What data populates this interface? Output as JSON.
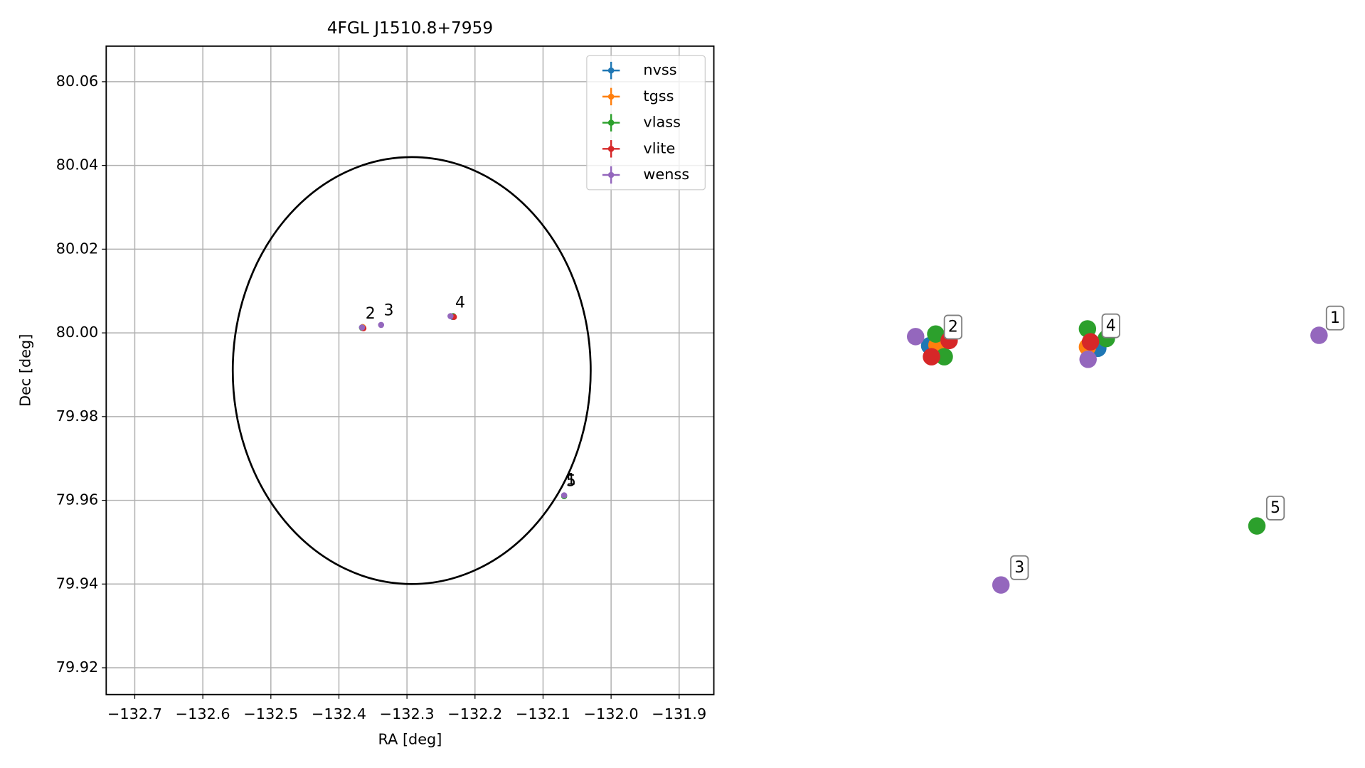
{
  "chart_data": [
    {
      "type": "scatter",
      "title": "4FGL J1510.8+7959",
      "x_label": "RA [deg]",
      "y_label": "Dec [deg]",
      "xlim": [
        -132.742,
        -131.849
      ],
      "ylim": [
        79.9136,
        80.0685
      ],
      "xticks": [
        {
          "value": -132.7,
          "label": "−132.7"
        },
        {
          "value": -132.6,
          "label": "−132.6"
        },
        {
          "value": -132.5,
          "label": "−132.5"
        },
        {
          "value": -132.4,
          "label": "−132.4"
        },
        {
          "value": -132.3,
          "label": "−132.3"
        },
        {
          "value": -132.2,
          "label": "−132.2"
        },
        {
          "value": -132.1,
          "label": "−132.1"
        },
        {
          "value": -132.0,
          "label": "−132.0"
        },
        {
          "value": -131.9,
          "label": "−131.9"
        }
      ],
      "yticks": [
        79.92,
        79.94,
        79.96,
        79.98,
        {
          "value": 80,
          "label": "80.00"
        },
        80.02,
        80.04,
        80.06
      ],
      "grid": true,
      "legend": "upper right",
      "ellipse": {
        "center": [
          -132.293,
          79.991
        ],
        "width": 0.526,
        "height": 0.102
      },
      "series": [
        {
          "name": "nvss",
          "color": "#1f77b4",
          "x": [
            -132.366,
            -132.233
          ],
          "y": [
            80.0013,
            80.0038
          ]
        },
        {
          "name": "tgss",
          "color": "#ff7f0e",
          "x": [
            -132.365,
            -132.232
          ],
          "y": [
            80.0014,
            80.0039
          ]
        },
        {
          "name": "vlass",
          "color": "#2ca02c",
          "x": [
            -132.366,
            -132.232,
            -132.069
          ],
          "y": [
            80.0012,
            80.004,
            79.961
          ]
        },
        {
          "name": "vlite",
          "color": "#d62728",
          "x": [
            -132.364,
            -132.231
          ],
          "y": [
            80.0011,
            80.0038
          ]
        },
        {
          "name": "wenss",
          "color": "#9467bd",
          "x": [
            -132.069,
            -132.366,
            -132.338,
            -132.236
          ],
          "y": [
            79.9612,
            80.0013,
            80.0019,
            80.004
          ]
        }
      ],
      "annotations": [
        {
          "text": "1",
          "x": -132.06,
          "y": 79.9648
        },
        {
          "text": "2",
          "x": -132.355,
          "y": 80.0044
        },
        {
          "text": "3",
          "x": -132.328,
          "y": 80.0052
        },
        {
          "text": "4",
          "x": -132.223,
          "y": 80.0071
        },
        {
          "text": "5",
          "x": -132.06,
          "y": 79.9644
        }
      ]
    },
    {
      "type": "scatter",
      "axes": false,
      "label_box": true,
      "xlim": [
        0,
        10
      ],
      "ylim": [
        0,
        10
      ],
      "series": [
        {
          "name": "nvss",
          "color": "#1f77b4",
          "x": [
            2.97,
            5.73
          ],
          "y": [
            5.38,
            5.34
          ]
        },
        {
          "name": "tgss",
          "color": "#ff7f0e",
          "x": [
            3.09,
            5.56
          ],
          "y": [
            5.39,
            5.36
          ]
        },
        {
          "name": "vlass",
          "color": "#2ca02c",
          "x": [
            3.07,
            3.21,
            5.56,
            5.87,
            8.34
          ],
          "y": [
            5.56,
            5.21,
            5.64,
            5.49,
            2.6
          ]
        },
        {
          "name": "vlite",
          "color": "#d62728",
          "x": [
            3.29,
            3.0,
            5.61
          ],
          "y": [
            5.46,
            5.21,
            5.44
          ]
        },
        {
          "name": "wenss",
          "color": "#9467bd",
          "x": [
            9.36,
            2.74,
            4.14,
            5.57
          ],
          "y": [
            5.54,
            5.52,
            1.69,
            5.17
          ]
        }
      ],
      "annotations": [
        {
          "text": "1",
          "x": 9.61,
          "y": 5.8
        },
        {
          "text": "2",
          "x": 3.34,
          "y": 5.66
        },
        {
          "text": "3",
          "x": 4.43,
          "y": 1.95
        },
        {
          "text": "4",
          "x": 5.93,
          "y": 5.68
        },
        {
          "text": "5",
          "x": 8.63,
          "y": 2.87
        }
      ]
    }
  ]
}
